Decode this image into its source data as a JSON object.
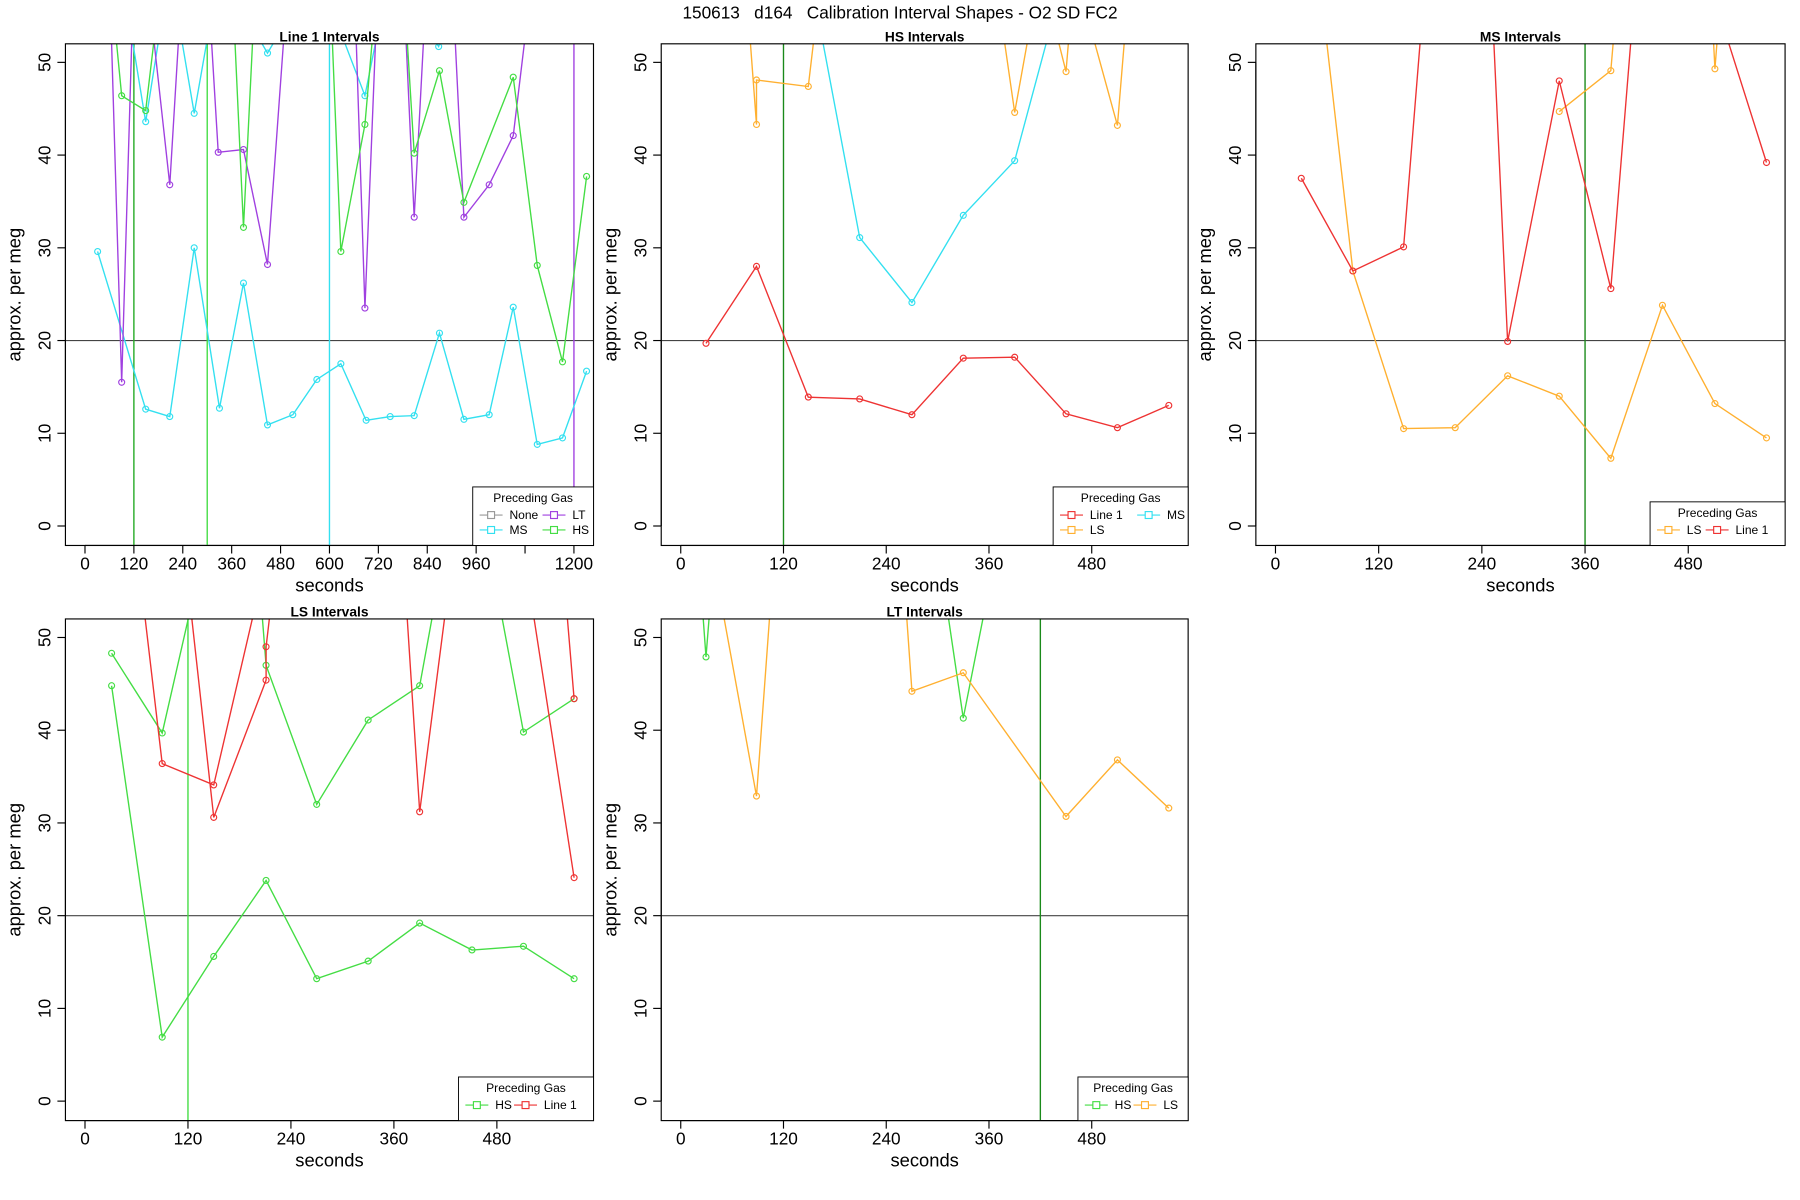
{
  "title": "150613   d164   Calibration Interval Shapes - O2 SD FC2",
  "chart_data": [
    {
      "type": "line",
      "title": "Line 1 Intervals",
      "x_label": "seconds",
      "y_label": "approx. per meg",
      "xlim": [
        -48,
        1248
      ],
      "ylim": [
        -2.1,
        52
      ],
      "xticks": [
        0,
        120,
        240,
        360,
        480,
        600,
        720,
        840,
        960,
        {
          "value": 1080,
          "label": null
        },
        1200
      ],
      "yticks": [
        0,
        10,
        20,
        30,
        40,
        50
      ],
      "hlines": [
        20
      ],
      "vlines": [
        {
          "value": 120,
          "color": "#22aa22"
        },
        {
          "value": 300,
          "color": "#44dd44"
        },
        {
          "value": 600,
          "color": "#33e0f0"
        },
        {
          "value": 1200,
          "color": "#a040e0"
        }
      ],
      "legend": {
        "title": "Preceding Gas",
        "position": "bottom-right",
        "nrow": 2
      },
      "series": [
        {
          "name": "None",
          "color": "#999999",
          "x": [],
          "values": []
        },
        {
          "name": "MS",
          "color": "#33e0f0",
          "x": [
            31,
            149,
            208,
            268,
            330,
            389,
            448,
            510,
            569,
            628,
            690,
            749,
            808,
            870,
            930,
            992,
            1051,
            1110,
            1172,
            1231,
            null,
            88,
            149,
            208,
            268,
            330,
            448,
            569,
            687,
            749,
            868,
            930
          ],
          "values": [
            29.6,
            12.6,
            11.8,
            30.0,
            12.7,
            26.2,
            10.9,
            12.0,
            15.8,
            17.5,
            11.4,
            11.8,
            11.9,
            20.8,
            11.5,
            12.0,
            23.6,
            8.8,
            9.5,
            16.7,
            null,
            60,
            43.6,
            60,
            44.5,
            60,
            51.0,
            60,
            46.4,
            60,
            51.7,
            60
          ]
        },
        {
          "name": "LT",
          "color": "#a040e0",
          "x": [
            60,
            90,
            120,
            150,
            208,
            240,
            300,
            327,
            389,
            448,
            500,
            660,
            687,
            720,
            780,
            808,
            840,
            900,
            930,
            992,
            1051,
            1100
          ],
          "values": [
            60,
            15.5,
            60,
            60,
            36.8,
            60,
            60,
            40.3,
            40.6,
            28.2,
            60,
            60,
            23.5,
            60,
            60,
            33.3,
            60,
            60,
            33.3,
            36.8,
            42.1,
            60
          ]
        },
        {
          "name": "HS",
          "color": "#44dd44",
          "x": [
            60,
            90,
            149,
            190,
            360,
            389,
            420,
            600,
            628,
            687,
            720,
            780,
            808,
            870,
            930,
            1051,
            1110,
            1172,
            1231
          ],
          "values": [
            60,
            46.4,
            44.8,
            60,
            60,
            32.2,
            60,
            60,
            29.6,
            43.3,
            60,
            60,
            40.2,
            49.1,
            34.9,
            48.4,
            28.1,
            17.7,
            37.7
          ]
        }
      ]
    },
    {
      "type": "line",
      "title": "HS Intervals",
      "x_label": "seconds",
      "y_label": "approx. per meg",
      "xlim": [
        -22.8,
        592.6
      ],
      "ylim": [
        -2.1,
        52
      ],
      "xticks": [
        0,
        120,
        240,
        360,
        480
      ],
      "yticks": [
        0,
        10,
        20,
        30,
        40,
        50
      ],
      "hlines": [
        20
      ],
      "vlines": [
        {
          "value": 120,
          "color": "#1a8a1a"
        }
      ],
      "legend": {
        "title": "Preceding Gas",
        "position": "bottom-right",
        "nrow": 2
      },
      "series": [
        {
          "name": "Line 1",
          "color": "#ee3333",
          "x": [
            29.5,
            88.5,
            149,
            209,
            270,
            330,
            390,
            450,
            510,
            570
          ],
          "values": [
            19.7,
            28.0,
            13.9,
            13.7,
            12.0,
            18.1,
            18.2,
            12.1,
            10.6,
            13.0
          ]
        },
        {
          "name": "LS",
          "color": "#ffb030",
          "x": [
            75,
            88.5,
            88.5,
            149,
            165,
            null,
            366,
            390,
            420,
            450,
            460,
            510,
            525
          ],
          "values": [
            60,
            43.3,
            48.1,
            47.4,
            60,
            null,
            60,
            44.6,
            60,
            49.0,
            60,
            43.2,
            60
          ]
        },
        {
          "name": "MS",
          "color": "#33e0f0",
          "x": [
            150,
            209,
            270,
            330,
            390,
            450
          ],
          "values": [
            60,
            31.1,
            24.1,
            33.5,
            39.4,
            60
          ]
        }
      ]
    },
    {
      "type": "line",
      "title": "MS Intervals",
      "x_label": "seconds",
      "y_label": "approx. per meg",
      "xlim": [
        -22.8,
        592.6
      ],
      "ylim": [
        -2.1,
        52
      ],
      "xticks": [
        0,
        120,
        240,
        360,
        480
      ],
      "yticks": [
        0,
        10,
        20,
        30,
        40,
        50
      ],
      "hlines": [
        20
      ],
      "vlines": [
        {
          "value": 360,
          "color": "#1a8a1a"
        }
      ],
      "legend": {
        "title": "Preceding Gas",
        "position": "bottom-right",
        "nrow": 1
      },
      "series": [
        {
          "name": "LS",
          "color": "#ffb030",
          "x": [
            50,
            90,
            149,
            209,
            270,
            330,
            390,
            450,
            511,
            571,
            null,
            330,
            390,
            400,
            null,
            505,
            511,
            520
          ],
          "values": [
            60,
            27.5,
            10.5,
            10.6,
            16.2,
            14.0,
            7.3,
            23.8,
            13.2,
            9.5,
            null,
            44.7,
            49.1,
            60,
            null,
            60,
            49.3,
            60
          ]
        },
        {
          "name": "Line 1",
          "color": "#ee3333",
          "x": [
            30,
            90,
            149,
            175,
            250,
            270,
            330,
            390,
            420,
            500,
            571
          ],
          "values": [
            37.5,
            27.5,
            30.1,
            60,
            60,
            19.9,
            48.0,
            25.6,
            60,
            60,
            39.2
          ]
        }
      ]
    },
    {
      "type": "line",
      "title": "LS Intervals",
      "x_label": "seconds",
      "y_label": "approx. per meg",
      "xlim": [
        -22.8,
        592.6
      ],
      "ylim": [
        -2.1,
        52
      ],
      "xticks": [
        0,
        120,
        240,
        360,
        480
      ],
      "yticks": [
        0,
        10,
        20,
        30,
        40,
        50
      ],
      "hlines": [
        20
      ],
      "vlines": [
        {
          "value": 120,
          "color": "#44dd44"
        }
      ],
      "legend": {
        "title": "Preceding Gas",
        "position": "bottom-right",
        "nrow": 1
      },
      "series": [
        {
          "name": "HS",
          "color": "#44dd44",
          "x": [
            31,
            90,
            150,
            211,
            270,
            330,
            390,
            451,
            511,
            570,
            null,
            31,
            90,
            140,
            200,
            211,
            270,
            330,
            390,
            420,
            470,
            511,
            570
          ],
          "values": [
            44.8,
            6.9,
            15.6,
            23.8,
            13.2,
            15.1,
            19.2,
            16.3,
            16.7,
            13.2,
            null,
            48.3,
            39.7,
            60,
            60,
            47.0,
            32.0,
            41.1,
            44.8,
            60,
            60,
            39.8,
            43.4
          ]
        },
        {
          "name": "Line 1",
          "color": "#ee3333",
          "x": [
            60,
            90,
            150,
            215,
            null,
            115,
            150,
            211,
            211,
            225,
            null,
            370,
            390,
            430,
            null,
            510,
            570,
            null,
            555,
            570
          ],
          "values": [
            60,
            36.4,
            34.1,
            60,
            null,
            60,
            30.6,
            45.4,
            49.0,
            60,
            null,
            60,
            31.2,
            60,
            null,
            60,
            24.1,
            null,
            60,
            43.4
          ]
        }
      ]
    },
    {
      "type": "line",
      "title": "LT Intervals",
      "x_label": "seconds",
      "y_label": "approx. per meg",
      "xlim": [
        -22.8,
        592.6
      ],
      "ylim": [
        -2.1,
        52
      ],
      "xticks": [
        0,
        120,
        240,
        360,
        480
      ],
      "yticks": [
        0,
        10,
        20,
        30,
        40,
        50
      ],
      "hlines": [
        20
      ],
      "vlines": [
        {
          "value": 420,
          "color": "#1a8a1a"
        }
      ],
      "legend": {
        "title": "Preceding Gas",
        "position": "bottom-right",
        "nrow": 1
      },
      "series": [
        {
          "name": "HS",
          "color": "#44dd44",
          "x": [
            20,
            29.5,
            40,
            null,
            300,
            330,
            370
          ],
          "values": [
            60,
            47.9,
            60,
            null,
            60,
            41.3,
            60
          ]
        },
        {
          "name": "LS",
          "color": "#ffb030",
          "x": [
            35,
            88.5,
            110,
            null,
            258,
            270,
            330,
            450,
            510,
            570
          ],
          "values": [
            60,
            32.9,
            60,
            null,
            60,
            44.2,
            46.2,
            30.7,
            36.8,
            31.6
          ]
        }
      ]
    }
  ]
}
